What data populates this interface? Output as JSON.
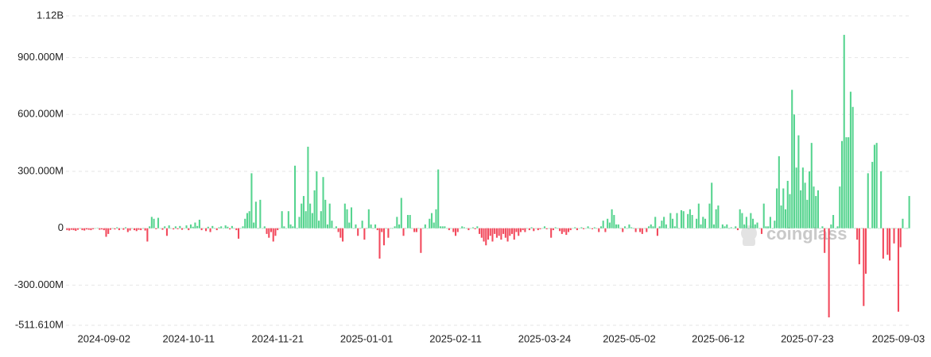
{
  "chart_data": {
    "type": "bar",
    "ylim": [
      -511610000.0,
      1120000000.0
    ],
    "yticks": [
      {
        "value": 1120000000.0,
        "label": "1.12B"
      },
      {
        "value": 900000000.0,
        "label": "900.000M"
      },
      {
        "value": 600000000.0,
        "label": "600.000M"
      },
      {
        "value": 300000000.0,
        "label": "300.000M"
      },
      0,
      {
        "value": -300000000.0,
        "label": "-300.000M"
      },
      {
        "value": -511610000.0,
        "label": "-511.610M"
      }
    ],
    "grid": true,
    "colors": {
      "positive": "#56d48f",
      "negative": "#f2495c"
    },
    "watermark": "coinglass",
    "categories": [
      null,
      null,
      null,
      null,
      null,
      null,
      null,
      null,
      null,
      null,
      null,
      null,
      null,
      null,
      null,
      null,
      null,
      "2024-09-02",
      null,
      null,
      null,
      null,
      null,
      null,
      null,
      null,
      null,
      null,
      null,
      null,
      null,
      null,
      null,
      null,
      null,
      null,
      null,
      null,
      null,
      null,
      null,
      null,
      null,
      null,
      null,
      null,
      null,
      null,
      null,
      null,
      null,
      null,
      null,
      null,
      null,
      null,
      "2024-10-11",
      null,
      null,
      null,
      null,
      null,
      null,
      null,
      null,
      null,
      null,
      null,
      null,
      null,
      null,
      null,
      null,
      null,
      null,
      null,
      null,
      null,
      null,
      null,
      null,
      null,
      null,
      null,
      null,
      null,
      null,
      null,
      null,
      null,
      null,
      null,
      null,
      null,
      null,
      null,
      null,
      "2024-11-21",
      null,
      null,
      null,
      null,
      null,
      null,
      null,
      null,
      null,
      null,
      null,
      null,
      null,
      null,
      null,
      null,
      null,
      null,
      null,
      null,
      null,
      null,
      null,
      null,
      null,
      null,
      null,
      null,
      null,
      null,
      null,
      null,
      null,
      null,
      null,
      null,
      null,
      null,
      null,
      null,
      "2025-01-01",
      null,
      null,
      null,
      null,
      null,
      null,
      null,
      null,
      null,
      null,
      null,
      null,
      null,
      null,
      null,
      null,
      null,
      null,
      null,
      null,
      null,
      null,
      null,
      null,
      null,
      null,
      null,
      null,
      null,
      null,
      null,
      null,
      null,
      null,
      null,
      null,
      null,
      null,
      null,
      null,
      "2025-02-11",
      null,
      null,
      null,
      null,
      null,
      null,
      null,
      null,
      null,
      null,
      null,
      null,
      null,
      null,
      null,
      null,
      null,
      null,
      null,
      null,
      null,
      null,
      null,
      null,
      null,
      null,
      null,
      null,
      null,
      null,
      null,
      null,
      null,
      null,
      null,
      null,
      null,
      null,
      null,
      null,
      "2025-03-24",
      null,
      null,
      null,
      null,
      null,
      null,
      null,
      null,
      null,
      null,
      null,
      null,
      null,
      null,
      null,
      null,
      null,
      null,
      null,
      null,
      null,
      null,
      null,
      null,
      null,
      null,
      null,
      null,
      null,
      null,
      null,
      null,
      null,
      null,
      null,
      null,
      null,
      null,
      "2025-05-02",
      null,
      null,
      null,
      null,
      null,
      null,
      null,
      null,
      null,
      null,
      null,
      null,
      null,
      null,
      null,
      null,
      null,
      null,
      null,
      null,
      null,
      null,
      null,
      null,
      null,
      null,
      null,
      null,
      null,
      null,
      null,
      null,
      null,
      null,
      null,
      null,
      null,
      null,
      null,
      null,
      "2025-06-12",
      null,
      null,
      null,
      null,
      null,
      null,
      null,
      null,
      null,
      null,
      null,
      null,
      null,
      null,
      null,
      null,
      null,
      null,
      null,
      null,
      null,
      null,
      null,
      null,
      null,
      null,
      null,
      null,
      null,
      null,
      null,
      null,
      null,
      null,
      null,
      null,
      null,
      null,
      null,
      null,
      "2025-07-23",
      null,
      null,
      null,
      null,
      null,
      null,
      null,
      null,
      null,
      null,
      null,
      null,
      null,
      null,
      null,
      null,
      null,
      null,
      null,
      null,
      null,
      null,
      null,
      null,
      null,
      null,
      null,
      null,
      null,
      null,
      null,
      null,
      null,
      null,
      null,
      null,
      null,
      null,
      null,
      null,
      null,
      "2025-09-03",
      null,
      null,
      null,
      null,
      null
    ],
    "values": [
      -10000000.0,
      -12000000.0,
      -8000000.0,
      -10000000.0,
      -14000000.0,
      -8000000.0,
      0,
      -10000000.0,
      -12000000.0,
      -6000000.0,
      -8000000.0,
      -10000000.0,
      -5000000.0,
      0,
      2000000.0,
      -8000000.0,
      -6000000.0,
      -10000000.0,
      -45000000.0,
      -30000000.0,
      -8000000.0,
      0,
      -6000000.0,
      5000000.0,
      -10000000.0,
      0,
      -8000000.0,
      5000000.0,
      -20000000.0,
      -12000000.0,
      0,
      -10000000.0,
      -15000000.0,
      -8000000.0,
      -10000000.0,
      0,
      -12000000.0,
      -70000000.0,
      10000000.0,
      60000000.0,
      50000000.0,
      -5000000.0,
      55000000.0,
      0,
      -8000000.0,
      10000000.0,
      -40000000.0,
      15000000.0,
      0,
      -6000000.0,
      10000000.0,
      -5000000.0,
      12000000.0,
      -8000000.0,
      0,
      15000000.0,
      -10000000.0,
      20000000.0,
      8000000.0,
      30000000.0,
      12000000.0,
      45000000.0,
      -10000000.0,
      0,
      -15000000.0,
      8000000.0,
      -20000000.0,
      12000000.0,
      0,
      -10000000.0,
      5000000.0,
      10000000.0,
      0,
      15000000.0,
      8000000.0,
      -6000000.0,
      12000000.0,
      0,
      -10000000.0,
      -55000000.0,
      0,
      10000000.0,
      50000000.0,
      80000000.0,
      90000000.0,
      290000000.0,
      30000000.0,
      140000000.0,
      0,
      150000000.0,
      0,
      10000000.0,
      -30000000.0,
      -50000000.0,
      -20000000.0,
      -70000000.0,
      -40000000.0,
      -10000000.0,
      0,
      90000000.0,
      10000000.0,
      0,
      90000000.0,
      20000000.0,
      10000000.0,
      330000000.0,
      0,
      60000000.0,
      130000000.0,
      170000000.0,
      90000000.0,
      430000000.0,
      130000000.0,
      80000000.0,
      200000000.0,
      300000000.0,
      40000000.0,
      90000000.0,
      270000000.0,
      150000000.0,
      20000000.0,
      130000000.0,
      40000000.0,
      0,
      10000000.0,
      -20000000.0,
      -50000000.0,
      -70000000.0,
      130000000.0,
      100000000.0,
      30000000.0,
      110000000.0,
      0,
      20000000.0,
      -40000000.0,
      0,
      40000000.0,
      -60000000.0,
      0,
      100000000.0,
      20000000.0,
      0,
      20000000.0,
      -10000000.0,
      -160000000.0,
      -20000000.0,
      -90000000.0,
      0,
      -50000000.0,
      0,
      0,
      10000000.0,
      60000000.0,
      20000000.0,
      160000000.0,
      -40000000.0,
      0,
      70000000.0,
      70000000.0,
      0,
      -20000000.0,
      -20000000.0,
      0,
      -130000000.0,
      0,
      20000000.0,
      0,
      50000000.0,
      80000000.0,
      30000000.0,
      100000000.0,
      310000000.0,
      10000000.0,
      10000000.0,
      10000000.0,
      0,
      -10000000.0,
      0,
      -20000000.0,
      -40000000.0,
      -20000000.0,
      0,
      10000000.0,
      5000000.0,
      0,
      -10000000.0,
      0,
      5000000.0,
      -5000000.0,
      10000000.0,
      -30000000.0,
      -50000000.0,
      -70000000.0,
      -90000000.0,
      -60000000.0,
      -40000000.0,
      -70000000.0,
      -30000000.0,
      -50000000.0,
      -40000000.0,
      -60000000.0,
      -30000000.0,
      -50000000.0,
      -70000000.0,
      -40000000.0,
      -30000000.0,
      -60000000.0,
      -20000000.0,
      -40000000.0,
      -20000000.0,
      -10000000.0,
      -20000000.0,
      0,
      -10000000.0,
      5000000.0,
      -15000000.0,
      0,
      -10000000.0,
      -5000000.0,
      0,
      10000000.0,
      -5000000.0,
      0,
      -50000000.0,
      -10000000.0,
      5000000.0,
      0,
      -15000000.0,
      -30000000.0,
      -20000000.0,
      -35000000.0,
      -20000000.0,
      -10000000.0,
      0,
      5000000.0,
      -10000000.0,
      0,
      5000000.0,
      -5000000.0,
      0,
      10000000.0,
      0,
      -5000000.0,
      5000000.0,
      0,
      -20000000.0,
      10000000.0,
      40000000.0,
      -20000000.0,
      50000000.0,
      30000000.0,
      100000000.0,
      70000000.0,
      20000000.0,
      20000000.0,
      0,
      -20000000.0,
      10000000.0,
      0,
      20000000.0,
      5000000.0,
      0,
      -20000000.0,
      0,
      -20000000.0,
      -30000000.0,
      0,
      -20000000.0,
      10000000.0,
      20000000.0,
      10000000.0,
      60000000.0,
      -40000000.0,
      10000000.0,
      40000000.0,
      60000000.0,
      20000000.0,
      0,
      80000000.0,
      50000000.0,
      10000000.0,
      80000000.0,
      0,
      95000000.0,
      90000000.0,
      0,
      75000000.0,
      100000000.0,
      70000000.0,
      0,
      50000000.0,
      130000000.0,
      20000000.0,
      60000000.0,
      50000000.0,
      0,
      130000000.0,
      240000000.0,
      20000000.0,
      100000000.0,
      120000000.0,
      0,
      20000000.0,
      10000000.0,
      20000000.0,
      0,
      5000000.0,
      0,
      10000000.0,
      -10000000.0,
      100000000.0,
      80000000.0,
      20000000.0,
      60000000.0,
      0,
      80000000.0,
      50000000.0,
      20000000.0,
      30000000.0,
      0,
      -30000000.0,
      130000000.0,
      10000000.0,
      10000000.0,
      60000000.0,
      0,
      40000000.0,
      210000000.0,
      380000000.0,
      120000000.0,
      210000000.0,
      100000000.0,
      250000000.0,
      180000000.0,
      730000000.0,
      600000000.0,
      320000000.0,
      490000000.0,
      200000000.0,
      320000000.0,
      240000000.0,
      150000000.0,
      300000000.0,
      450000000.0,
      220000000.0,
      170000000.0,
      200000000.0,
      0,
      10000000.0,
      -130000000.0,
      0,
      -470000000.0,
      20000000.0,
      70000000.0,
      0,
      10000000.0,
      220000000.0,
      460000000.0,
      1020000000.0,
      480000000.0,
      480000000.0,
      720000000.0,
      640000000.0,
      0,
      -60000000.0,
      -190000000.0,
      0,
      -410000000.0,
      -240000000.0,
      290000000.0,
      0,
      350000000.0,
      440000000.0,
      450000000.0,
      0,
      300000000.0,
      -160000000.0,
      0,
      -140000000.0,
      -170000000.0,
      0,
      -80000000.0,
      0,
      -440000000.0,
      -100000000.0,
      50000000.0,
      0,
      0,
      170000000.0
    ]
  }
}
